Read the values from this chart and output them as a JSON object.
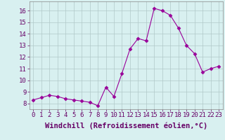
{
  "x": [
    0,
    1,
    2,
    3,
    4,
    5,
    6,
    7,
    8,
    9,
    10,
    11,
    12,
    13,
    14,
    15,
    16,
    17,
    18,
    19,
    20,
    21,
    22,
    23
  ],
  "y": [
    8.3,
    8.5,
    8.7,
    8.6,
    8.4,
    8.3,
    8.2,
    8.1,
    7.8,
    9.4,
    8.6,
    10.6,
    12.7,
    13.6,
    13.4,
    16.2,
    16.0,
    15.6,
    14.5,
    13.0,
    12.3,
    10.7,
    11.0,
    11.2
  ],
  "xlabel": "Windchill (Refroidissement éolien,°C)",
  "ylim": [
    7.5,
    16.8
  ],
  "yticks": [
    8,
    9,
    10,
    11,
    12,
    13,
    14,
    15,
    16
  ],
  "xtick_labels": [
    "0",
    "1",
    "2",
    "3",
    "4",
    "5",
    "6",
    "7",
    "8",
    "9",
    "10",
    "11",
    "12",
    "13",
    "14",
    "15",
    "16",
    "17",
    "18",
    "19",
    "20",
    "21",
    "22",
    "23"
  ],
  "line_color": "#990099",
  "marker": "D",
  "marker_size": 2.5,
  "background_color": "#d8f0f0",
  "grid_color": "#b0c8c8",
  "xlabel_fontsize": 7.5,
  "tick_fontsize": 6.5
}
